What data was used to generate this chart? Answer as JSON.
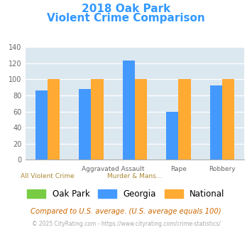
{
  "title_line1": "2018 Oak Park",
  "title_line2": "Violent Crime Comparison",
  "title_color": "#3399ff",
  "groups": [
    {
      "label_top": "",
      "label_bot": "All Violent Crime",
      "oak_park": 0,
      "georgia": 86,
      "national": 100
    },
    {
      "label_top": "Aggravated Assault",
      "label_bot": "Murder & Mans...",
      "oak_park": 0,
      "georgia": 88,
      "national": 100
    },
    {
      "label_top": "Assault",
      "label_bot": "",
      "oak_park": 0,
      "georgia": 123,
      "national": 100
    },
    {
      "label_top": "Rape",
      "label_bot": "",
      "oak_park": 0,
      "georgia": 60,
      "national": 100
    },
    {
      "label_top": "Robbery",
      "label_bot": "",
      "oak_park": 0,
      "georgia": 92,
      "national": 100
    }
  ],
  "color_oakpark": "#77cc44",
  "color_georgia": "#4499ff",
  "color_national": "#ffaa33",
  "ylim": [
    0,
    140
  ],
  "yticks": [
    0,
    20,
    40,
    60,
    80,
    100,
    120,
    140
  ],
  "bar_width": 0.28,
  "plot_bg": "#dce8f0",
  "grid_color": "#ffffff",
  "legend_labels": [
    "Oak Park",
    "Georgia",
    "National"
  ],
  "footnote1": "Compared to U.S. average. (U.S. average equals 100)",
  "footnote2": "© 2025 CityRating.com - https://www.cityrating.com/crime-statistics/",
  "footnote1_color": "#cc6600",
  "footnote2_color": "#aaaaaa"
}
